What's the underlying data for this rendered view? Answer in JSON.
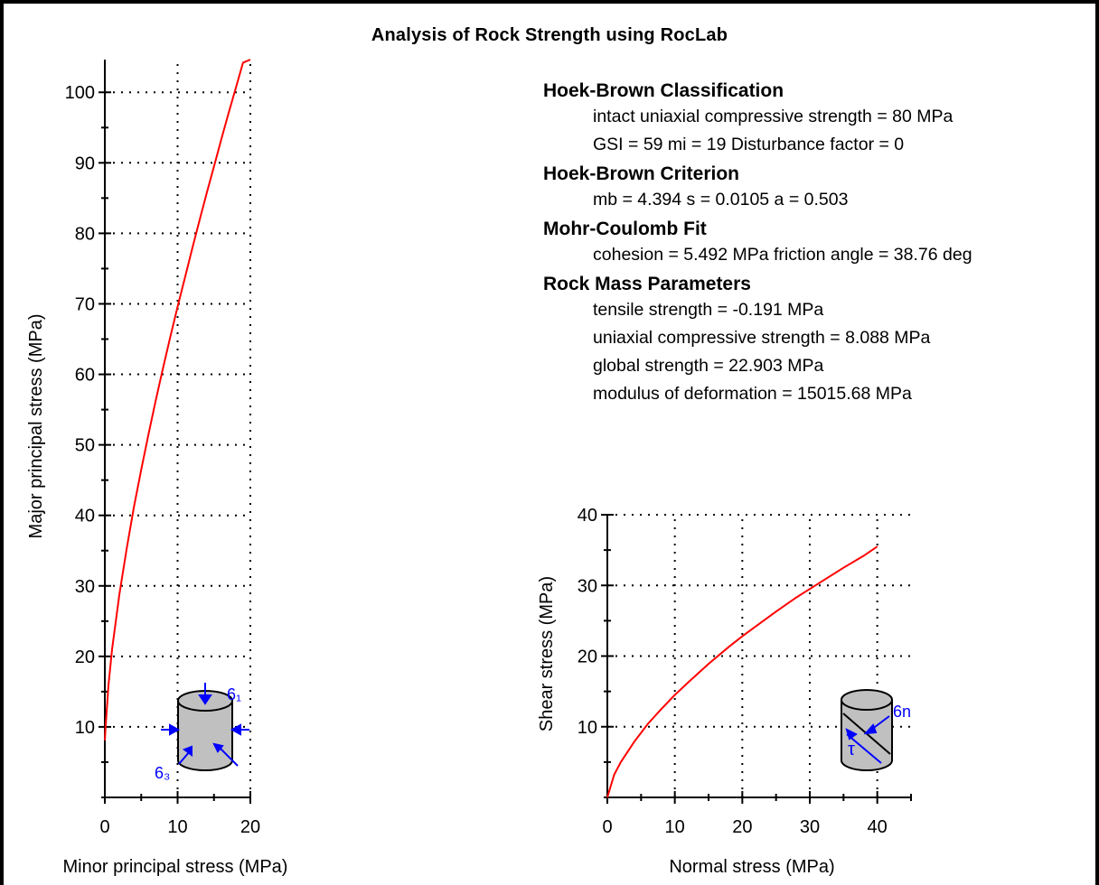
{
  "title": "Analysis of Rock Strength using RocLab",
  "info": {
    "hoek_brown_classification": {
      "heading": "Hoek-Brown Classification",
      "lines": [
        "intact uniaxial compressive strength = 80 MPa",
        "GSI = 59    mi = 19    Disturbance factor = 0"
      ]
    },
    "hoek_brown_criterion": {
      "heading": "Hoek-Brown Criterion",
      "lines": [
        "mb = 4.394    s = 0.0105    a = 0.503"
      ]
    },
    "mohr_coulomb_fit": {
      "heading": "Mohr-Coulomb Fit",
      "lines": [
        "cohesion = 5.492 MPa    friction angle = 38.76 deg"
      ]
    },
    "rock_mass_parameters": {
      "heading": "Rock Mass Parameters",
      "lines": [
        "tensile strength = -0.191 MPa",
        "uniaxial compressive strength = 8.088 MPa",
        "global strength = 22.903 MPa",
        "modulus of deformation = 15015.68 MPa"
      ]
    }
  },
  "icons": {
    "left_sigma1": "6₁",
    "left_sigma3": "6₃",
    "right_sigma_n": "6n",
    "right_tau": "τ"
  },
  "colors": {
    "curve": "#ff0000",
    "icon_arrows": "#0000ff",
    "cylinder_fill": "#c0c0c0"
  },
  "chart_data": [
    {
      "type": "line",
      "xlabel": "Minor principal stress (MPa)",
      "ylabel": "Major principal stress (MPa)",
      "xlim": [
        0,
        20
      ],
      "ylim": [
        0,
        104
      ],
      "xticks": [
        0,
        10,
        20
      ],
      "yticks": [
        10,
        20,
        30,
        40,
        50,
        60,
        70,
        80,
        90,
        100
      ],
      "grid": true,
      "series": [
        {
          "x": [
            0,
            0.1,
            0.5,
            1,
            2,
            3,
            4,
            5,
            6,
            7,
            8,
            9,
            10,
            11,
            12,
            13,
            14,
            15,
            16,
            17,
            18,
            19,
            20
          ],
          "y": [
            8.1,
            9.9,
            15.9,
            21.0,
            28.8,
            35.3,
            41.2,
            46.5,
            51.5,
            56.3,
            60.9,
            65.3,
            69.6,
            73.7,
            77.8,
            81.8,
            85.7,
            89.5,
            93.3,
            97.0,
            100.6,
            104.2,
            107.8
          ]
        }
      ]
    },
    {
      "type": "line",
      "xlabel": "Normal stress (MPa)",
      "ylabel": "Shear stress (MPa)",
      "xlim": [
        0,
        45
      ],
      "ylim": [
        0,
        40
      ],
      "xticks": [
        0,
        10,
        20,
        30,
        40
      ],
      "yticks": [
        10,
        20,
        30,
        40
      ],
      "grid": true,
      "series": [
        {
          "x": [
            0,
            1,
            2,
            4,
            6,
            8,
            10,
            12,
            15,
            18,
            20,
            22,
            25,
            28,
            30,
            32,
            35,
            38,
            40
          ],
          "y": [
            0,
            3.2,
            5.0,
            7.9,
            10.4,
            12.5,
            14.5,
            16.3,
            18.9,
            21.3,
            22.8,
            24.2,
            26.3,
            28.3,
            29.5,
            30.7,
            32.5,
            34.2,
            35.5
          ]
        }
      ]
    }
  ]
}
